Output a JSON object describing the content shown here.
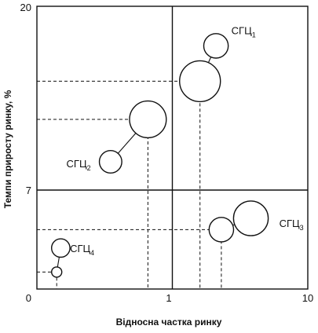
{
  "chart_data": {
    "type": "bubble",
    "title": "",
    "xlabel": "Відносна частка ринку",
    "ylabel": "Темпи приросту ринку, %",
    "x_ticks": [
      "0",
      "1",
      "10"
    ],
    "y_ticks": [
      "20",
      "7",
      "0"
    ],
    "x_scale": "log",
    "xlim": [
      0.1,
      10
    ],
    "ylim": [
      0,
      20
    ],
    "grid": false,
    "divider_lines": {
      "x": 1,
      "y": 7
    },
    "series": [
      {
        "name": "СГЦ",
        "sub": "1",
        "current": {
          "x": 1.6,
          "y": 14.7,
          "size": 1.0
        },
        "target": {
          "x": 2.1,
          "y": 17.2,
          "size": 0.6
        }
      },
      {
        "name": "СГЦ",
        "sub": "2",
        "current": {
          "x": 0.66,
          "y": 12.0,
          "size": 0.9
        },
        "target": {
          "x": 0.35,
          "y": 9.0,
          "size": 0.55
        }
      },
      {
        "name": "СГЦ",
        "sub": "3",
        "current": {
          "x": 2.3,
          "y": 4.2,
          "size": 0.6
        },
        "target": {
          "x": 3.8,
          "y": 5.0,
          "size": 0.85
        }
      },
      {
        "name": "СГЦ",
        "sub": "4",
        "current": {
          "x": 0.14,
          "y": 1.2,
          "size": 0.25
        },
        "target": {
          "x": 0.15,
          "y": 2.9,
          "size": 0.45
        }
      }
    ]
  }
}
